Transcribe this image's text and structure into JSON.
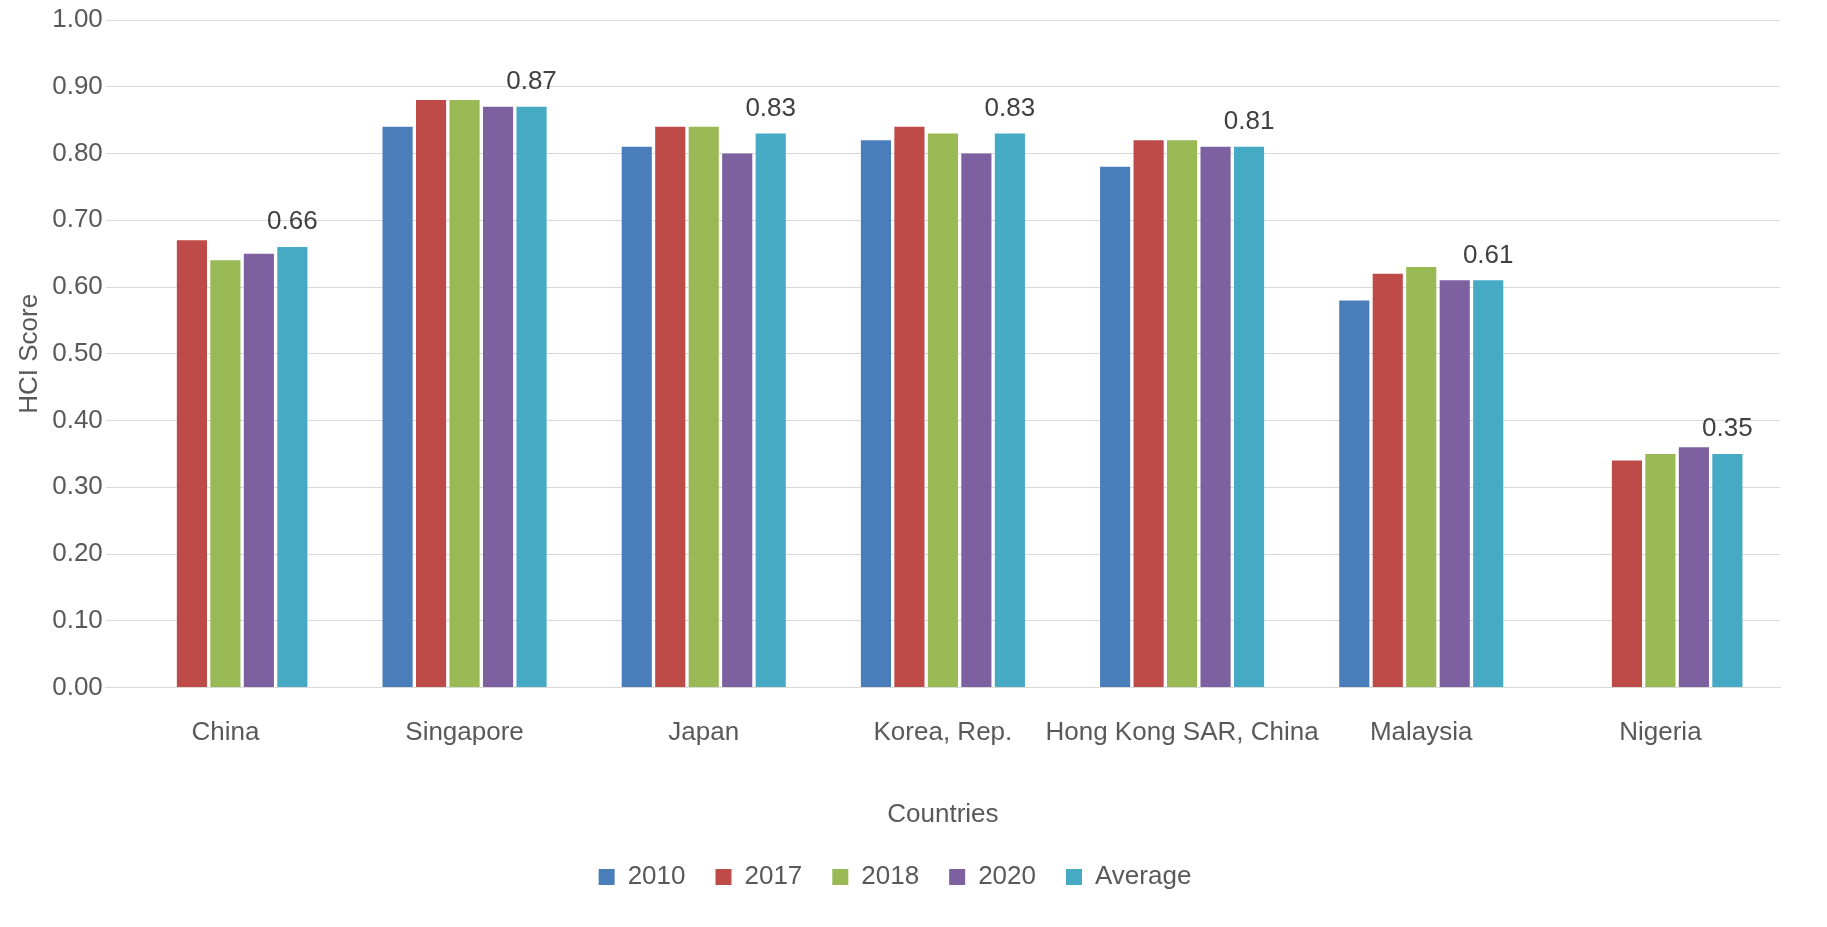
{
  "chart_data": {
    "type": "bar",
    "xlabel": "Countries",
    "ylabel": "HCI Score",
    "categories": [
      "China",
      "Singapore",
      "Japan",
      "Korea, Rep.",
      "Hong Kong SAR, China",
      "Malaysia",
      "Nigeria"
    ],
    "series": [
      {
        "name": "2010",
        "color": "#4a7ebb",
        "values": [
          null,
          0.84,
          0.81,
          0.82,
          0.78,
          0.58,
          null
        ]
      },
      {
        "name": "2017",
        "color": "#be4b48",
        "values": [
          0.67,
          0.88,
          0.84,
          0.84,
          0.82,
          0.62,
          0.34
        ]
      },
      {
        "name": "2018",
        "color": "#98b954",
        "values": [
          0.64,
          0.88,
          0.84,
          0.83,
          0.82,
          0.63,
          0.35
        ]
      },
      {
        "name": "2020",
        "color": "#7d60a0",
        "values": [
          0.65,
          0.87,
          0.8,
          0.8,
          0.81,
          0.61,
          0.36
        ]
      },
      {
        "name": "Average",
        "color": "#46aac5",
        "values": [
          0.66,
          0.87,
          0.83,
          0.83,
          0.81,
          0.61,
          0.35
        ],
        "value_labels": [
          "0.66",
          "0.87",
          "0.83",
          "0.83",
          "0.81",
          "0.61",
          "0.35"
        ]
      }
    ],
    "ylim": [
      0,
      1
    ],
    "yticks": [
      {
        "value": 0,
        "label": "0.00"
      },
      {
        "value": 0.1,
        "label": "0.10"
      },
      {
        "value": 0.2,
        "label": "0.20"
      },
      {
        "value": 0.3,
        "label": "0.30"
      },
      {
        "value": 0.4,
        "label": "0.40"
      },
      {
        "value": 0.5,
        "label": "0.50"
      },
      {
        "value": 0.6,
        "label": "0.60"
      },
      {
        "value": 0.7,
        "label": "0.70"
      },
      {
        "value": 0.8,
        "label": "0.80"
      },
      {
        "value": 0.9,
        "label": "0.90"
      },
      {
        "value": 1,
        "label": "1.00"
      }
    ],
    "grid": "y",
    "legend": "bottom"
  }
}
